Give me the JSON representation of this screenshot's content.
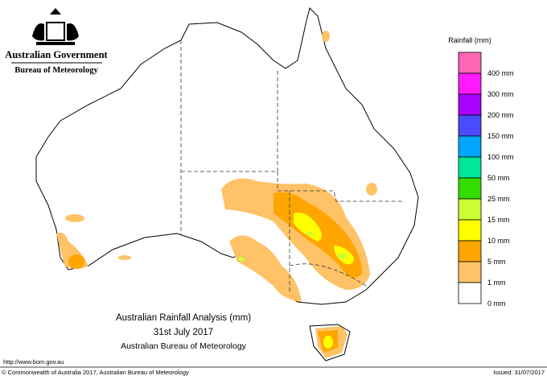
{
  "header": {
    "title": "Australian Government",
    "subtitle": "Bureau of Meteorology"
  },
  "legend": {
    "title": "Rainfall (mm)",
    "items": [
      {
        "label": null,
        "color": "#ff66b3"
      },
      {
        "label": "400 mm",
        "color": "#ff19ff"
      },
      {
        "label": "300 mm",
        "color": "#aa00ff"
      },
      {
        "label": "200 mm",
        "color": "#4a4aff"
      },
      {
        "label": "150 mm",
        "color": "#00a6ff"
      },
      {
        "label": "100 mm",
        "color": "#00e699"
      },
      {
        "label": "50 mm",
        "color": "#33dd00"
      },
      {
        "label": "25 mm",
        "color": "#ccff33"
      },
      {
        "label": "15 mm",
        "color": "#ffff00"
      },
      {
        "label": "10 mm",
        "color": "#ffa500"
      },
      {
        "label": "5 mm",
        "color": "#ffc266"
      },
      {
        "label": "1 mm",
        "color": "#ffffff"
      }
    ],
    "bottom_label": "0 mm"
  },
  "map": {
    "title": "Australian Rainfall Analysis (mm)",
    "date": "31st July 2017",
    "source": "Australian Bureau of Meteorology"
  },
  "footer": {
    "url": "http://www.bom.gov.au",
    "copyright": "© Commonwealth of Australia 2017, Australian Bureau of Meteorology",
    "issued": "Issued: 31/07/2017"
  }
}
